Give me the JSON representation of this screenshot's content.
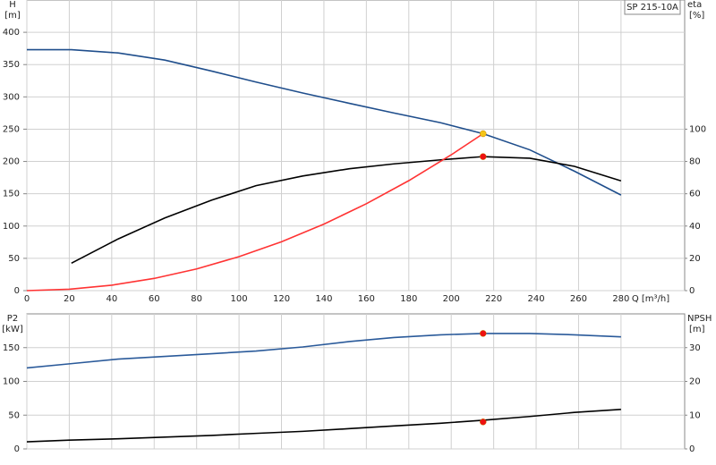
{
  "label": "SP 215-10A",
  "chart_data": [
    {
      "type": "line",
      "ylabel": "H",
      "yunit": "[m]",
      "y2label": "eta",
      "y2unit": "[%]",
      "xlabel": "Q [m³/h]",
      "xlim": [
        0,
        310
      ],
      "xticks": [
        0,
        20,
        40,
        60,
        80,
        100,
        120,
        140,
        160,
        180,
        200,
        220,
        240,
        260,
        280
      ],
      "ylim": [
        0,
        450
      ],
      "yticks": [
        0,
        50,
        100,
        150,
        200,
        250,
        300,
        350,
        400
      ],
      "y2lim": [
        0,
        180
      ],
      "y2ticks": [
        0,
        20,
        40,
        60,
        80,
        100
      ],
      "grid": true,
      "series": [
        {
          "color": "#1f4e8c",
          "axis": "y",
          "x": [
            0,
            21,
            43,
            65,
            87,
            108,
            130,
            152,
            173,
            195,
            215,
            237,
            258,
            280
          ],
          "values": [
            373,
            373,
            368,
            357,
            340,
            323,
            306,
            290,
            275,
            260,
            243,
            218,
            185,
            148
          ]
        },
        {
          "color": "#000000",
          "axis": "y2",
          "x": [
            21,
            43,
            65,
            87,
            108,
            130,
            152,
            173,
            195,
            215,
            237,
            258,
            280
          ],
          "values": [
            17,
            32,
            45,
            56,
            65,
            71,
            75.5,
            78.5,
            81,
            83,
            82,
            77,
            68
          ]
        },
        {
          "color": "#ff3333",
          "axis": "y",
          "x": [
            0,
            20,
            40,
            60,
            80,
            100,
            120,
            140,
            160,
            180,
            200,
            215
          ],
          "values": [
            0,
            2.1,
            8.4,
            18.9,
            33.6,
            52.6,
            75.7,
            103,
            134.6,
            170.3,
            210.3,
            243
          ]
        }
      ],
      "markers": [
        {
          "color": "#f5c518",
          "axis": "y",
          "x": 215,
          "y": 243
        },
        {
          "color": "#ee1111",
          "axis": "y2",
          "x": 215,
          "y": 83
        }
      ]
    },
    {
      "type": "line",
      "ylabel": "P2",
      "yunit": "[kW]",
      "y2label": "NPSH",
      "y2unit": "[m]",
      "xlim": [
        0,
        310
      ],
      "ylim": [
        0,
        200
      ],
      "yticks": [
        0,
        50,
        100,
        150
      ],
      "y2lim": [
        0,
        40
      ],
      "y2ticks": [
        0,
        10,
        20,
        30
      ],
      "grid": true,
      "series": [
        {
          "color": "#2a5a9a",
          "axis": "y",
          "x": [
            0,
            20,
            43,
            65,
            87,
            108,
            130,
            152,
            173,
            195,
            215,
            237,
            258,
            280
          ],
          "values": [
            120,
            126,
            133,
            137,
            141,
            145,
            151,
            159,
            165,
            169,
            171,
            171,
            169,
            166
          ]
        },
        {
          "color": "#000000",
          "axis": "y2",
          "x": [
            0,
            20,
            43,
            65,
            87,
            108,
            130,
            152,
            173,
            195,
            215,
            237,
            258,
            280
          ],
          "values": [
            2.1,
            2.6,
            3,
            3.5,
            4,
            4.6,
            5.2,
            6,
            6.8,
            7.6,
            8.5,
            9.6,
            10.8,
            11.7
          ]
        }
      ],
      "markers": [
        {
          "color": "#ee1111",
          "axis": "y",
          "x": 215,
          "y": 171
        },
        {
          "color": "#ee1111",
          "axis": "y2",
          "x": 215,
          "y": 8
        }
      ]
    }
  ]
}
